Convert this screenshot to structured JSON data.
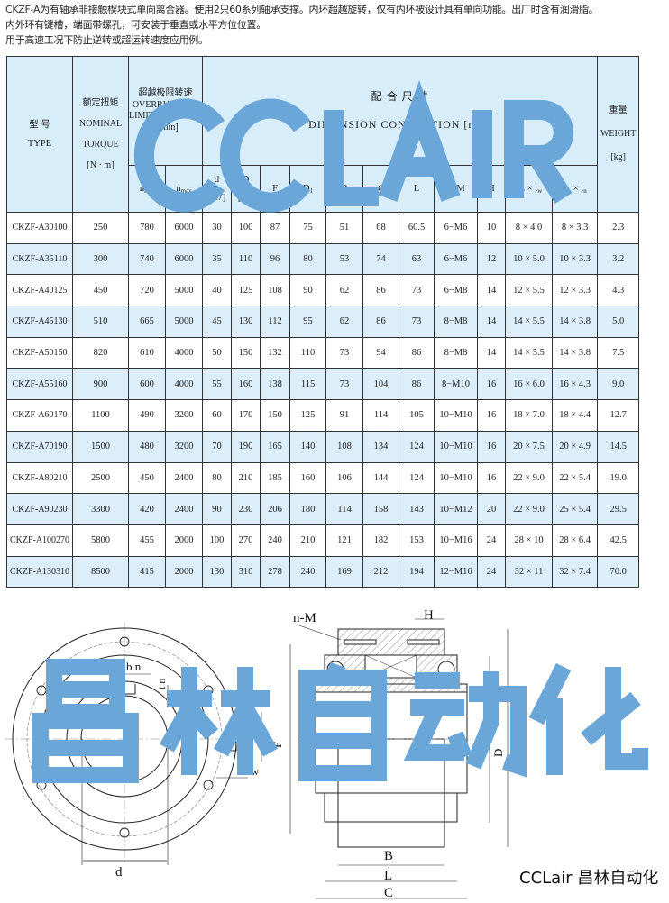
{
  "intro": {
    "model": "CKZF-A",
    "line1_rest": "为有轴承非接触楔块式单向离合器。使用2只60系列轴承支撑。内环超越旋转，仅有内环被设计具有单向功能。出厂时含有润滑脂。",
    "line2": "内外环有键槽，端面带螺孔，可安装于垂直或水平方位位置。",
    "line3": "用于高速工况下防止逆转或超运转速度应用例。"
  },
  "table": {
    "header": {
      "type_cn": "型 号",
      "type_en": "TYPE",
      "torque_cn": "额定扭矩",
      "torque_en1": "NOMINAL",
      "torque_en2": "TORQUE",
      "torque_unit": "[N · m]",
      "speed_cn": "超越极限转速",
      "speed_en1": "OVERRUNNING",
      "speed_en2": "LIMITING SPEEDS",
      "speed_unit": "[r/min]",
      "dim_cn": "配 合 尺 寸",
      "dim_en": "DIMENSION CONNECTION [mm]",
      "weight_cn": "重量",
      "weight_en": "WEIGHT",
      "weight_unit": "[kg]",
      "n_min": "n",
      "n_min_sub": "min",
      "n_max": "n",
      "n_max_sub": "max",
      "d": "d",
      "d_tol": "[H7]",
      "D": "D",
      "D_tol": "[h7]",
      "F": "F",
      "D1": "D",
      "D1_sub": "1",
      "B": "B",
      "C": "C",
      "L": "L",
      "nM": "n−M",
      "H": "H",
      "bwtw": "b",
      "bwtw_sub1": "w",
      "bwtw_x": " × t",
      "bwtw_sub2": "w",
      "bntn": "b",
      "bntn_sub1": "n",
      "bntn_x": " × t",
      "bntn_sub2": "n"
    },
    "rows": [
      [
        "CKZF-A30100",
        "250",
        "780",
        "6000",
        "30",
        "100",
        "87",
        "75",
        "51",
        "68",
        "60.5",
        "6−M6",
        "10",
        "8 × 4.0",
        "8 × 3.3",
        "2.3"
      ],
      [
        "CKZF-A35110",
        "300",
        "740",
        "6000",
        "35",
        "110",
        "96",
        "80",
        "53",
        "74",
        "63",
        "6−M6",
        "12",
        "10 × 5.0",
        "10 × 3.3",
        "3.2"
      ],
      [
        "CKZF-A40125",
        "450",
        "720",
        "5000",
        "40",
        "125",
        "108",
        "90",
        "62",
        "86",
        "73",
        "6−M8",
        "14",
        "12 × 5.5",
        "12 × 3.3",
        "4.3"
      ],
      [
        "CKZF-A45130",
        "510",
        "665",
        "5000",
        "45",
        "130",
        "112",
        "95",
        "62",
        "86",
        "73",
        "8−M8",
        "14",
        "14 × 5.5",
        "14 × 3.8",
        "5.0"
      ],
      [
        "CKZF-A50150",
        "820",
        "610",
        "4000",
        "50",
        "150",
        "132",
        "110",
        "73",
        "94",
        "86",
        "8−M8",
        "14",
        "14 × 5.5",
        "14 × 3.8",
        "7.5"
      ],
      [
        "CKZF-A55160",
        "900",
        "600",
        "4000",
        "55",
        "160",
        "138",
        "115",
        "73",
        "104",
        "86",
        "8−M10",
        "16",
        "16 × 6.0",
        "16 × 4.3",
        "9.0"
      ],
      [
        "CKZF-A60170",
        "1100",
        "490",
        "3200",
        "60",
        "170",
        "150",
        "125",
        "91",
        "114",
        "105",
        "10−M10",
        "16",
        "18 × 7.0",
        "18 × 4.4",
        "12.7"
      ],
      [
        "CKZF-A70190",
        "1500",
        "480",
        "3200",
        "70",
        "190",
        "165",
        "140",
        "108",
        "134",
        "124",
        "10−M10",
        "16",
        "20 × 7.5",
        "20 × 4.9",
        "14.5"
      ],
      [
        "CKZF-A80210",
        "2500",
        "450",
        "2400",
        "80",
        "210",
        "185",
        "160",
        "106",
        "144",
        "124",
        "10−M10",
        "16",
        "22 × 9.0",
        "22 × 5.4",
        "19.0"
      ],
      [
        "CKZF-A90230",
        "3300",
        "420",
        "2400",
        "90",
        "230",
        "206",
        "180",
        "114",
        "158",
        "143",
        "10−M12",
        "20",
        "22 × 9.0",
        "25 × 5.4",
        "29.5"
      ],
      [
        "CKZF-A100270",
        "5800",
        "455",
        "2000",
        "100",
        "270",
        "240",
        "210",
        "121",
        "182",
        "153",
        "10−M16",
        "24",
        "28 × 10",
        "28 × 6.4",
        "42.5"
      ],
      [
        "CKZF-A130310",
        "8500",
        "415",
        "2000",
        "130",
        "310",
        "278",
        "240",
        "169",
        "212",
        "194",
        "12−M16",
        "24",
        "32 × 11",
        "32 × 7.4",
        "70.0"
      ]
    ]
  },
  "drawing": {
    "labels": {
      "nM": "n-M",
      "H": "H",
      "B": "B",
      "L": "L",
      "C": "C",
      "D1": "D1",
      "D": "D",
      "F": "F",
      "d": "d",
      "bn": "b n",
      "tn": "t n",
      "bw": "b w",
      "tw": "t w"
    }
  },
  "watermarks": {
    "table": "CCLAIR",
    "drawing": "昌林自动化"
  },
  "brand": "CCLair 昌林自动化",
  "colors": {
    "header_bg": "#d7edf9",
    "alt_row_bg": "#dceef9",
    "watermark": "#6aa6d8"
  }
}
